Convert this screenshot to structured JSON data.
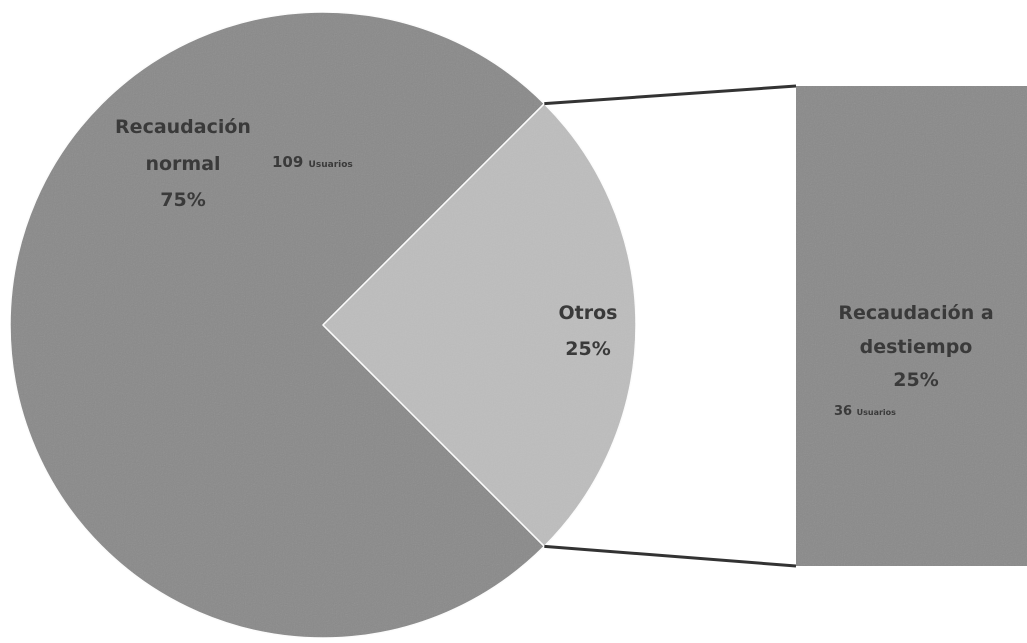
{
  "chart_data": {
    "type": "pie",
    "slices": [
      {
        "label_lines": [
          "Recaudación",
          "normal"
        ],
        "percent_label": "75%",
        "value": 75,
        "users_count": "109",
        "users_unit": "Usuarios",
        "color": "#8a8a8a"
      },
      {
        "label_lines": [
          "Otros"
        ],
        "percent_label": "25%",
        "value": 25,
        "color": "#bdbdbd"
      }
    ],
    "breakout": {
      "source_slice": "Otros",
      "bars": [
        {
          "label_lines": [
            "Recaudación a",
            "destiempo"
          ],
          "percent_label": "25%",
          "value": 25,
          "users_count": "36",
          "users_unit": "Usuarios",
          "color": "#8a8a8a"
        }
      ]
    }
  }
}
